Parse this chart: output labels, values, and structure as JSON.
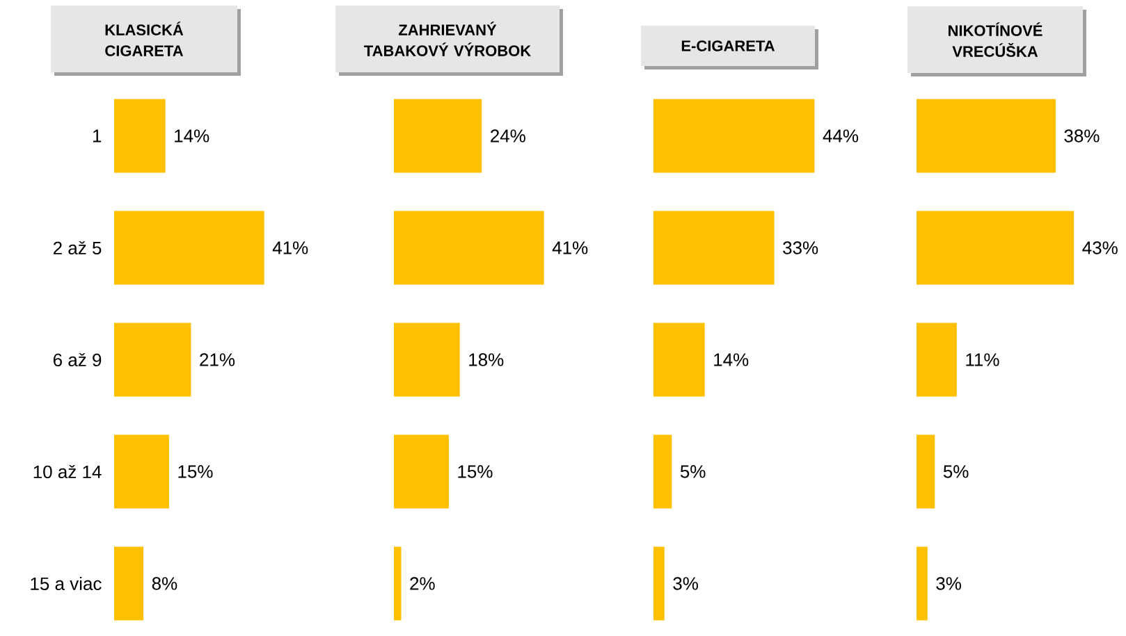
{
  "chart_data": [
    {
      "type": "bar",
      "orientation": "horizontal",
      "title": "KLASICKÁ CIGARETA",
      "categories": [
        "1",
        "2 až 5",
        "6 až 9",
        "10 až 14",
        "15 a viac"
      ],
      "values": [
        14,
        41,
        21,
        15,
        8
      ],
      "value_labels": [
        "14%",
        "41%",
        "21%",
        "15%",
        "8%"
      ],
      "color": "#ffc000",
      "tick_labels": "y"
    },
    {
      "type": "bar",
      "orientation": "horizontal",
      "title": "ZAHRIEVANÝ TABAKOVÝ VÝROBOK",
      "categories": [
        null,
        null,
        null,
        null,
        null
      ],
      "values": [
        24,
        41,
        18,
        15,
        2
      ],
      "value_labels": [
        "24%",
        "41%",
        "18%",
        "15%",
        "2%"
      ],
      "color": "#ffc000"
    },
    {
      "type": "bar",
      "orientation": "horizontal",
      "title": "E-CIGARETA",
      "categories": [
        null,
        null,
        null,
        null,
        null
      ],
      "values": [
        44,
        33,
        14,
        5,
        3
      ],
      "value_labels": [
        "44%",
        "33%",
        "14%",
        "5%",
        "3%"
      ],
      "color": "#ffc000"
    },
    {
      "type": "bar",
      "orientation": "horizontal",
      "title": "NIKOTÍNOVÉ VRECÚŠKA",
      "categories": [
        null,
        null,
        null,
        null,
        null
      ],
      "values": [
        38,
        43,
        11,
        5,
        3
      ],
      "value_labels": [
        "38%",
        "43%",
        "11%",
        "5%",
        "3%"
      ],
      "color": "#ffc000"
    }
  ]
}
